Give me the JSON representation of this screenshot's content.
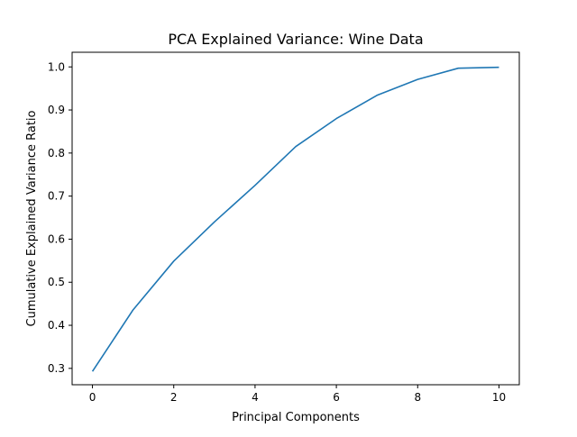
{
  "chart_data": {
    "type": "line",
    "title": "PCA Explained Variance: Wine Data",
    "xlabel": "Principal Components",
    "ylabel": "Cumulative Explained Variance Ratio",
    "x": [
      0,
      1,
      2,
      3,
      4,
      5,
      6,
      7,
      8,
      9,
      10
    ],
    "series": [
      {
        "values": [
          0.293,
          0.436,
          0.549,
          0.64,
          0.725,
          0.815,
          0.88,
          0.934,
          0.971,
          0.997,
          0.999
        ],
        "color": "#1f77b4"
      }
    ],
    "xlim": [
      -0.5,
      10.5
    ],
    "ylim": [
      0.262,
      1.034
    ],
    "xticks": [
      "0",
      "2",
      "4",
      "6",
      "8",
      "10"
    ],
    "yticks": [
      "0.3",
      "0.4",
      "0.5",
      "0.6",
      "0.7",
      "0.8",
      "0.9",
      "1.0"
    ],
    "grid": false,
    "legend": "none"
  }
}
